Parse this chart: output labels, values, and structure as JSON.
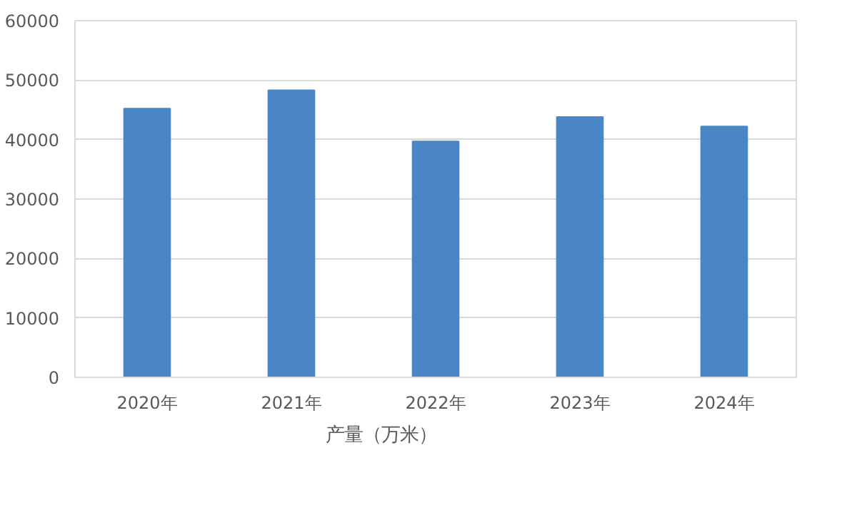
{
  "chart_data": {
    "type": "bar",
    "categories": [
      "2020年",
      "2021年",
      "2022年",
      "2023年",
      "2024年"
    ],
    "series": [
      {
        "name": "产量（万米）",
        "color": "#4a86c5",
        "values": [
          45200,
          48300,
          39700,
          43800,
          42200
        ]
      }
    ],
    "ylim": [
      0,
      60000
    ],
    "yticks": [
      0,
      10000,
      20000,
      30000,
      40000,
      50000,
      60000
    ],
    "grid": "y",
    "legend": "bottom"
  }
}
